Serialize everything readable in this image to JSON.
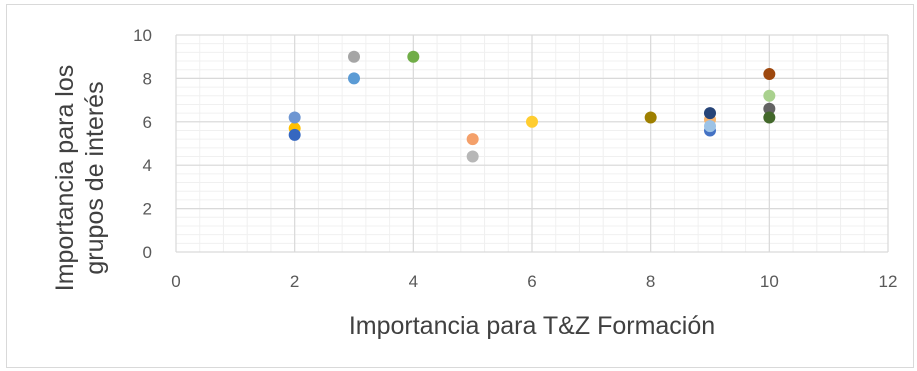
{
  "chart_data": {
    "type": "scatter",
    "xlabel": "Importancia para T&Z Formación",
    "ylabel_lines": [
      "Importancia para los",
      "grupos de interés"
    ],
    "xlim": [
      0,
      12
    ],
    "ylim": [
      0,
      10
    ],
    "x_ticks": [
      "0",
      "2",
      "4",
      "6",
      "8",
      "10",
      "12"
    ],
    "y_ticks": [
      "0",
      "2",
      "4",
      "6",
      "8",
      "10"
    ],
    "grid": true,
    "points": [
      {
        "x": 2,
        "y": 5.7,
        "color": "#ffc000"
      },
      {
        "x": 2,
        "y": 6.2,
        "color": "#6e96d2"
      },
      {
        "x": 2,
        "y": 5.4,
        "color": "#3567c0"
      },
      {
        "x": 3,
        "y": 9.0,
        "color": "#a5a5a5"
      },
      {
        "x": 3,
        "y": 8.0,
        "color": "#5b9bd5"
      },
      {
        "x": 4,
        "y": 9.0,
        "color": "#70ad47"
      },
      {
        "x": 5,
        "y": 5.2,
        "color": "#f4a06a"
      },
      {
        "x": 5,
        "y": 4.4,
        "color": "#b7b7b7"
      },
      {
        "x": 6,
        "y": 6.0,
        "color": "#ffcd30"
      },
      {
        "x": 8,
        "y": 6.2,
        "color": "#9e7f00"
      },
      {
        "x": 9,
        "y": 6.1,
        "color": "#f6b36e"
      },
      {
        "x": 9,
        "y": 6.4,
        "color": "#264478"
      },
      {
        "x": 9,
        "y": 5.6,
        "color": "#4472c4"
      },
      {
        "x": 9,
        "y": 5.8,
        "color": "#9dc3e6"
      },
      {
        "x": 10,
        "y": 8.2,
        "color": "#9e480e"
      },
      {
        "x": 10,
        "y": 7.2,
        "color": "#a9d18e"
      },
      {
        "x": 10,
        "y": 6.6,
        "color": "#636363"
      },
      {
        "x": 10,
        "y": 6.2,
        "color": "#43682b"
      }
    ]
  }
}
